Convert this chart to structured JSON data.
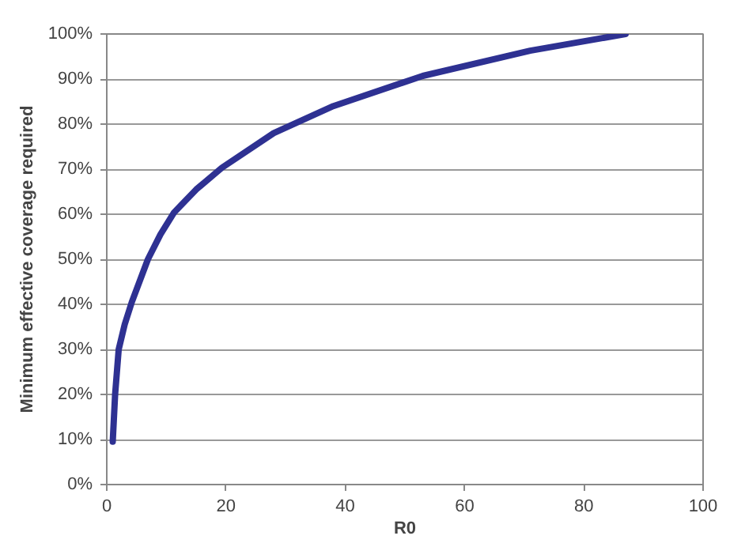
{
  "chart_data": {
    "type": "line",
    "xlabel": "R0",
    "ylabel": "Minimum effective coverage required",
    "x": [
      1,
      1.4,
      2,
      3,
      4.2,
      6.9,
      9,
      11.3,
      15,
      19.3,
      28,
      38,
      53,
      71,
      87
    ],
    "series": [
      {
        "color": "#2e3192",
        "values": [
          9.5,
          20,
          30,
          35.5,
          40.5,
          50,
          55.5,
          60.4,
          65.5,
          70.3,
          78,
          84,
          90.7,
          96.3,
          100
        ]
      }
    ],
    "xlim": [
      0,
      100
    ],
    "xticks": [
      0,
      20,
      40,
      60,
      80,
      100
    ],
    "ylim": [
      0,
      100
    ],
    "yticks": [
      {
        "value": 0,
        "label": "0%"
      },
      {
        "value": 10,
        "label": "10%"
      },
      {
        "value": 20,
        "label": "20%"
      },
      {
        "value": 30,
        "label": "30%"
      },
      {
        "value": 40,
        "label": "40%"
      },
      {
        "value": 50,
        "label": "50%"
      },
      {
        "value": 60,
        "label": "60%"
      },
      {
        "value": 70,
        "label": "70%"
      },
      {
        "value": 80,
        "label": "80%"
      },
      {
        "value": 90,
        "label": "90%"
      },
      {
        "value": 100,
        "label": "100%"
      }
    ],
    "grid": "y",
    "marker": "none",
    "line_style": "solid"
  }
}
